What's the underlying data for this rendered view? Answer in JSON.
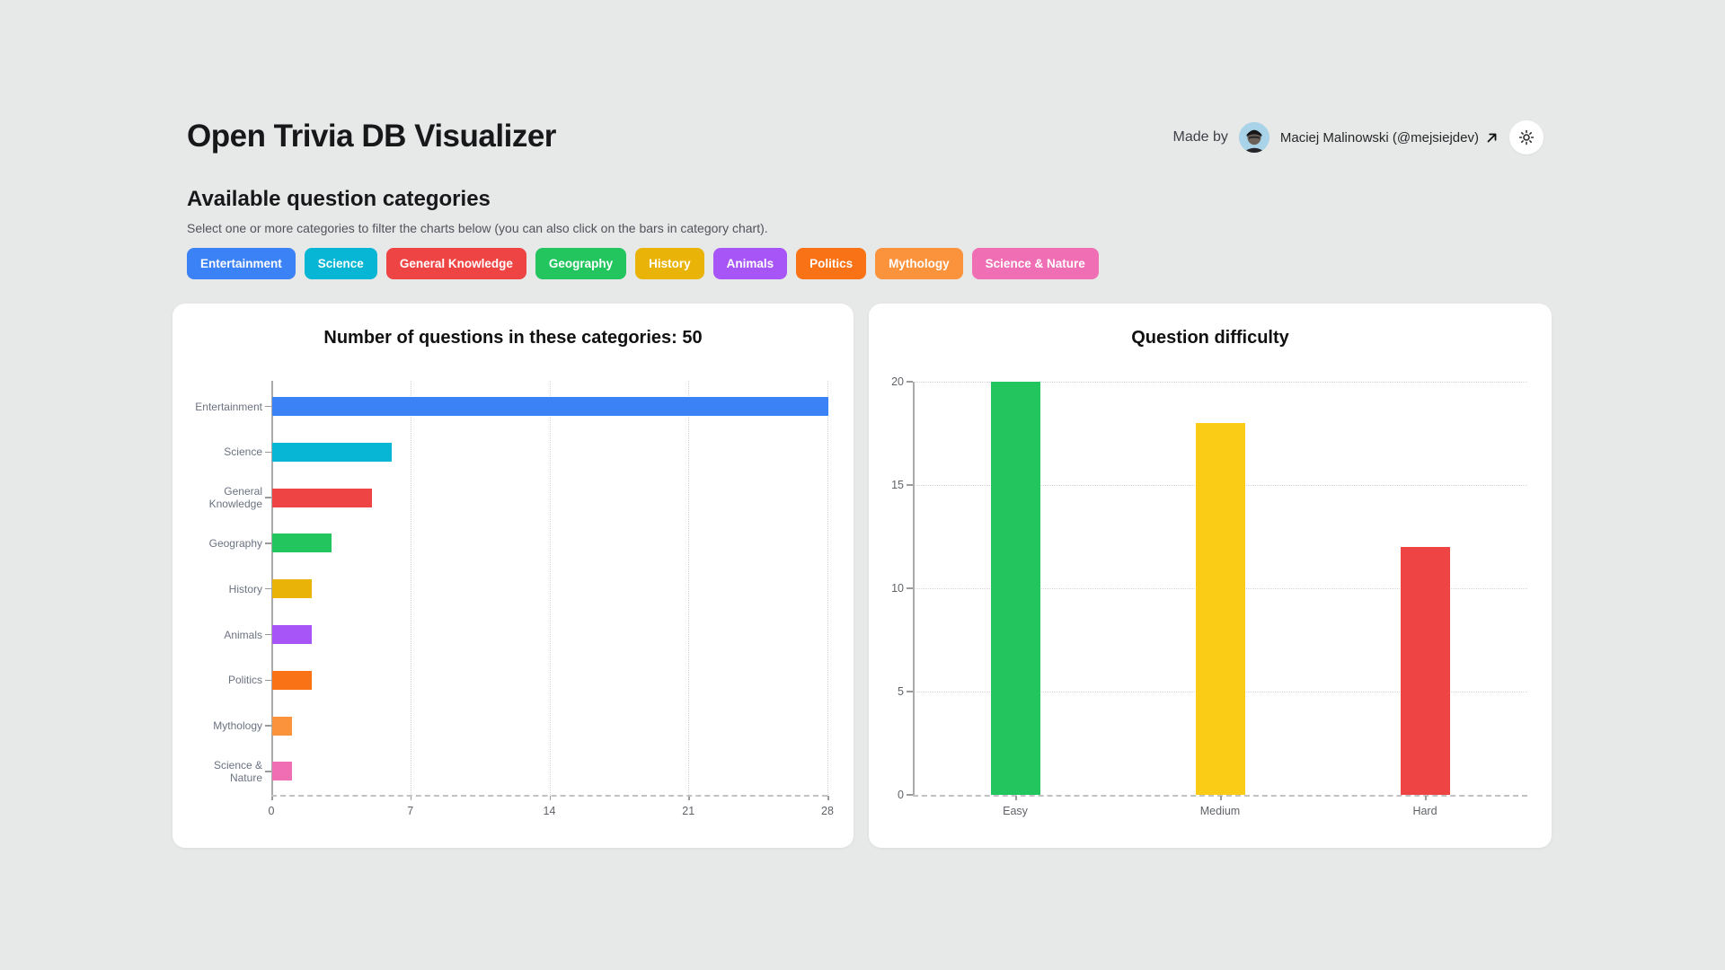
{
  "header": {
    "title": "Open Trivia DB Visualizer",
    "made_by_label": "Made by",
    "author_name": "Maciej Malinowski (@mejsiejdev)",
    "external_link_icon": "arrow-up-right-icon",
    "theme_toggle_icon": "sun-icon"
  },
  "categories_section": {
    "heading": "Available question categories",
    "subtitle": "Select one or more categories to filter the charts below (you can also click on the bars in category chart)."
  },
  "category_pills": [
    {
      "label": "Entertainment",
      "color": "#3b82f6"
    },
    {
      "label": "Science",
      "color": "#06b6d4"
    },
    {
      "label": "General Knowledge",
      "color": "#ef4444"
    },
    {
      "label": "Geography",
      "color": "#22c55e"
    },
    {
      "label": "History",
      "color": "#eab308"
    },
    {
      "label": "Animals",
      "color": "#a855f7"
    },
    {
      "label": "Politics",
      "color": "#f97316"
    },
    {
      "label": "Mythology",
      "color": "#fb923c"
    },
    {
      "label": "Science & Nature",
      "color": "#f06eb4"
    }
  ],
  "chart_data": [
    {
      "type": "bar",
      "orientation": "horizontal",
      "title": "Number of questions in these categories: 50",
      "categories": [
        "Entertainment",
        "Science",
        "General Knowledge",
        "Geography",
        "History",
        "Animals",
        "Politics",
        "Mythology",
        "Science & Nature"
      ],
      "values": [
        28,
        6,
        5,
        3,
        2,
        2,
        2,
        1,
        1
      ],
      "colors": [
        "#3b82f6",
        "#06b6d4",
        "#ef4444",
        "#22c55e",
        "#eab308",
        "#a855f7",
        "#f97316",
        "#fb923c",
        "#f06eb4"
      ],
      "xlabel": "",
      "ylabel": "",
      "xlim": [
        0,
        28
      ],
      "xticks": [
        0,
        7,
        14,
        21,
        28
      ],
      "grid": true,
      "legend": false,
      "bars_clickable": true
    },
    {
      "type": "bar",
      "orientation": "vertical",
      "title": "Question difficulty",
      "categories": [
        "Easy",
        "Medium",
        "Hard"
      ],
      "values": [
        20,
        18,
        12
      ],
      "colors": [
        "#22c55e",
        "#facc15",
        "#ef4444"
      ],
      "xlabel": "",
      "ylabel": "",
      "ylim": [
        0,
        20
      ],
      "yticks": [
        0,
        5,
        10,
        15,
        20
      ],
      "grid": true,
      "legend": false,
      "bars_clickable": false
    }
  ]
}
